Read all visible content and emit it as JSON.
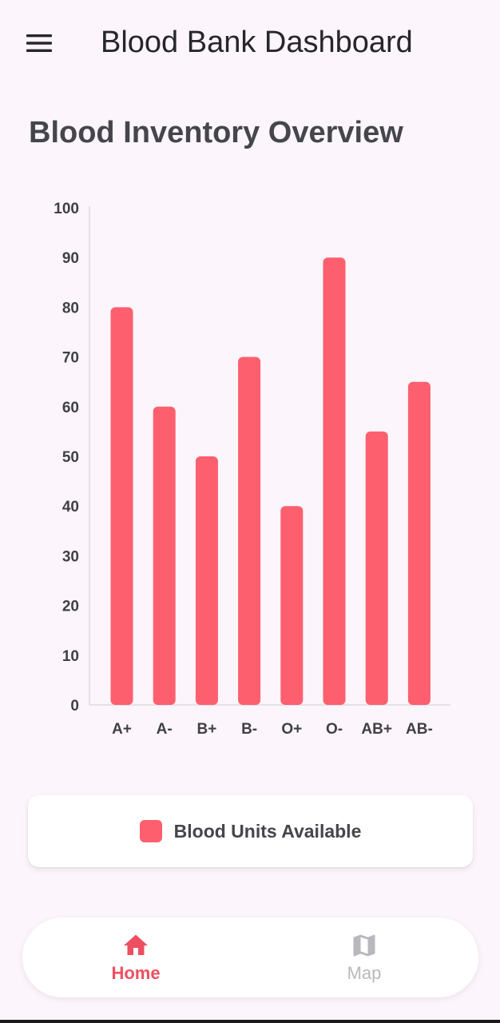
{
  "app_bar": {
    "title": "Blood Bank Dashboard",
    "menu_icon": "hamburger-menu-icon"
  },
  "section": {
    "title": "Blood Inventory Overview"
  },
  "chart_data": {
    "type": "bar",
    "categories": [
      "A+",
      "A-",
      "B+",
      "B-",
      "O+",
      "O-",
      "AB+",
      "AB-"
    ],
    "series": [
      {
        "name": "Blood Units Available",
        "values": [
          80,
          60,
          50,
          70,
          40,
          90,
          55,
          65
        ]
      }
    ],
    "yticks": [
      0,
      10,
      20,
      30,
      40,
      50,
      60,
      70,
      80,
      90,
      100
    ],
    "ylim": [
      0,
      100
    ],
    "grid": false,
    "legend_position": "bottom",
    "bar_color": "#fd5f6f"
  },
  "legend": {
    "label": "Blood Units Available",
    "color": "#fd5f6f"
  },
  "bottom_nav": {
    "items": [
      {
        "label": "Home",
        "icon": "home-icon",
        "active": true,
        "color": "#ee4f60"
      },
      {
        "label": "Map",
        "icon": "map-icon",
        "active": false,
        "color": "#b9b9bd"
      }
    ]
  }
}
